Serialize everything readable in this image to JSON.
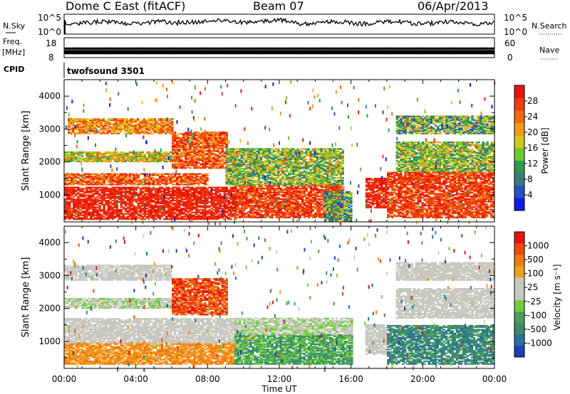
{
  "header": {
    "station": "Dome C East (fitACF)",
    "beam": "Beam 07",
    "date": "06/Apr/2013"
  },
  "strip_panels": {
    "nsky_label": "N.Sky",
    "nsky_ticks": [
      "10^5",
      "10^0"
    ],
    "nsearch_label": "N.Search",
    "nsearch_ticks": [
      "10^5",
      "10^0"
    ],
    "freq_label": "Freq.",
    "freq_unit": "[MHz]",
    "freq_ticks": [
      "18",
      "8"
    ],
    "nave_label": "Nave",
    "nave_ticks": [
      "60",
      "0"
    ],
    "cpid_label": "CPID",
    "cpid_value": "twofsound 3501"
  },
  "chart_data": [
    {
      "type": "heatmap",
      "panel": "power",
      "title": "",
      "xlabel": "Time UT",
      "ylabel": "Slant Range [km]",
      "x_ticks": [
        "00:00",
        "04:00",
        "08:00",
        "12:00",
        "16:00",
        "20:00",
        "00:00"
      ],
      "xlim_hours": [
        0,
        24
      ],
      "y_ticks": [
        1000,
        2000,
        3000,
        4000
      ],
      "ylim": [
        180,
        4500
      ],
      "colorbar": {
        "label": "Power [dB]",
        "ticks": [
          "4",
          "8",
          "12",
          "16",
          "20",
          "24",
          "28"
        ],
        "colors": [
          "#0a1de6",
          "#2a4fc0",
          "#3d7a7a",
          "#2f9a4a",
          "#6ccc2c",
          "#d6c81a",
          "#f59a18",
          "#f26a10",
          "#ee3a0c",
          "#e8140c"
        ]
      },
      "bands": [
        {
          "t0": 0.0,
          "t1": 9.5,
          "r0": 250,
          "r1": 1250,
          "c": [
            8,
            9
          ]
        },
        {
          "t0": 9.5,
          "t1": 15.5,
          "r0": 300,
          "r1": 1300,
          "c": [
            7,
            9
          ]
        },
        {
          "t0": 0.0,
          "t1": 8.0,
          "r0": 1300,
          "r1": 1650,
          "c": [
            6,
            9
          ]
        },
        {
          "t0": 0.0,
          "t1": 6.5,
          "r0": 2000,
          "r1": 2300,
          "c": [
            3,
            7
          ]
        },
        {
          "t0": 0.2,
          "t1": 6.0,
          "r0": 2850,
          "r1": 3300,
          "c": [
            5,
            8
          ]
        },
        {
          "t0": 6.0,
          "t1": 9.0,
          "r0": 1800,
          "r1": 2900,
          "c": [
            6,
            9
          ]
        },
        {
          "t0": 9.0,
          "t1": 15.5,
          "r0": 1300,
          "r1": 2400,
          "c": [
            2,
            6
          ]
        },
        {
          "t0": 14.5,
          "t1": 16.0,
          "r0": 200,
          "r1": 1100,
          "c": [
            1,
            5
          ]
        },
        {
          "t0": 16.8,
          "t1": 18.0,
          "r0": 600,
          "r1": 1500,
          "c": [
            8,
            9
          ]
        },
        {
          "t0": 18.0,
          "t1": 24.0,
          "r0": 300,
          "r1": 1700,
          "c": [
            7,
            9
          ]
        },
        {
          "t0": 18.5,
          "t1": 24.0,
          "r0": 1700,
          "r1": 2600,
          "c": [
            2,
            6
          ]
        },
        {
          "t0": 18.5,
          "t1": 24.0,
          "r0": 2850,
          "r1": 3400,
          "c": [
            1,
            6
          ]
        }
      ]
    },
    {
      "type": "heatmap",
      "panel": "velocity",
      "title": "",
      "xlabel": "Time UT",
      "ylabel": "Slant Range [km]",
      "x_ticks": [
        "00:00",
        "04:00",
        "08:00",
        "12:00",
        "16:00",
        "20:00",
        "00:00"
      ],
      "xlim_hours": [
        0,
        24
      ],
      "y_ticks": [
        1000,
        2000,
        3000,
        4000
      ],
      "ylim": [
        180,
        4500
      ],
      "colorbar": {
        "label": "Velocity [m s⁻¹]",
        "ticks": [
          "1000",
          "500",
          "100",
          "25",
          "-25",
          "-100",
          "-500",
          "-1000"
        ],
        "colors": [
          "#1d3fb8",
          "#2a6f9e",
          "#3a8a6e",
          "#4aa05a",
          "#6fcf3a",
          "#c8c8c0",
          "#c8c8c0",
          "#f0a020",
          "#f27a10",
          "#ee4a0c",
          "#e8140c"
        ]
      },
      "bands": [
        {
          "t0": 0.0,
          "t1": 9.5,
          "r0": 300,
          "r1": 950,
          "c": [
            7,
            8
          ]
        },
        {
          "t0": 0.0,
          "t1": 9.5,
          "r0": 950,
          "r1": 1700,
          "c": [
            5,
            6
          ]
        },
        {
          "t0": 0.0,
          "t1": 6.0,
          "r0": 2850,
          "r1": 3300,
          "c": [
            5,
            6
          ]
        },
        {
          "t0": 0.0,
          "t1": 6.5,
          "r0": 2000,
          "r1": 2300,
          "c": [
            4,
            6
          ]
        },
        {
          "t0": 6.0,
          "t1": 9.0,
          "r0": 1800,
          "r1": 2900,
          "c": [
            8,
            10
          ]
        },
        {
          "t0": 9.5,
          "t1": 16.0,
          "r0": 300,
          "r1": 1200,
          "c": [
            2,
            4
          ]
        },
        {
          "t0": 9.5,
          "t1": 16.0,
          "r0": 1200,
          "r1": 1700,
          "c": [
            4,
            6
          ]
        },
        {
          "t0": 16.8,
          "t1": 18.0,
          "r0": 600,
          "r1": 1500,
          "c": [
            5,
            6
          ]
        },
        {
          "t0": 18.0,
          "t1": 24.0,
          "r0": 300,
          "r1": 1500,
          "c": [
            1,
            3
          ]
        },
        {
          "t0": 18.5,
          "t1": 24.0,
          "r0": 1700,
          "r1": 2600,
          "c": [
            5,
            6
          ]
        },
        {
          "t0": 18.5,
          "t1": 24.0,
          "r0": 2850,
          "r1": 3400,
          "c": [
            5,
            6
          ]
        }
      ]
    }
  ]
}
